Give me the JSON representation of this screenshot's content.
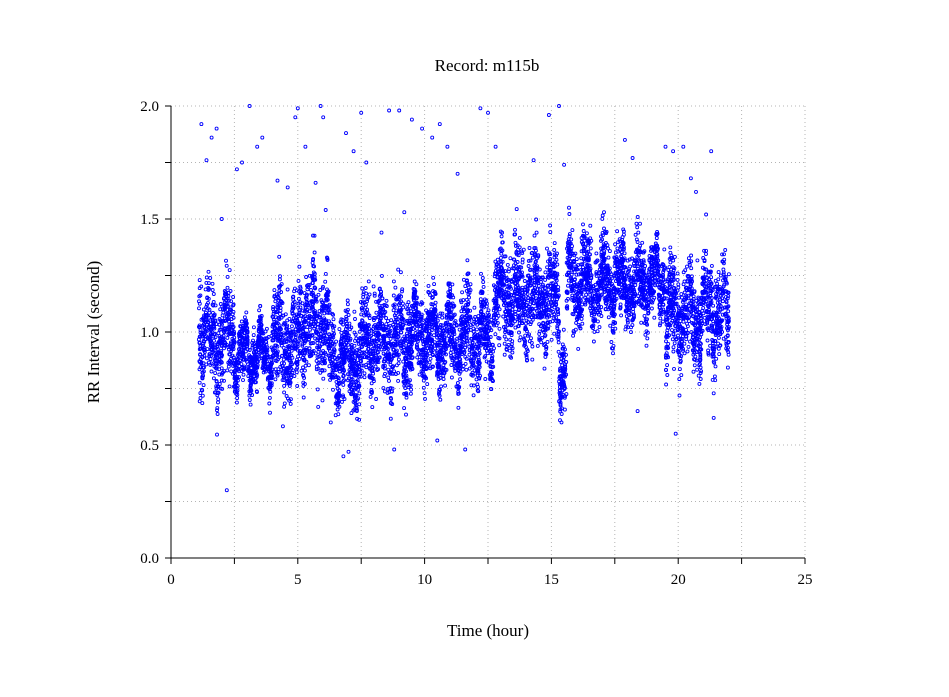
{
  "chart_data": {
    "type": "scatter",
    "title": "Record:  m115b",
    "xlabel": "Time (hour)",
    "ylabel": "RR Interval (second)",
    "xlim": [
      0,
      25
    ],
    "ylim": [
      0,
      2
    ],
    "x_ticks": [
      "0",
      "5",
      "10",
      "15",
      "20",
      "25"
    ],
    "y_ticks": [
      "0.0",
      "0.5",
      "1.0",
      "1.5",
      "2.0"
    ],
    "x_minor_step": 2.5,
    "y_minor_step": 0.25,
    "grid": true,
    "marker": "circle",
    "color": "#0000ff",
    "x_range_of_data": [
      1.1,
      22.0
    ],
    "series_profile": [
      {
        "x_start": 1.1,
        "x_end": 1.5,
        "y_center": 1.0,
        "y_spread": 0.2
      },
      {
        "x_start": 1.5,
        "x_end": 2.0,
        "y_center": 0.95,
        "y_spread": 0.18
      },
      {
        "x_start": 2.0,
        "x_end": 2.5,
        "y_center": 1.0,
        "y_spread": 0.2
      },
      {
        "x_start": 2.5,
        "x_end": 4.0,
        "y_center": 0.9,
        "y_spread": 0.1
      },
      {
        "x_start": 4.0,
        "x_end": 5.0,
        "y_center": 0.95,
        "y_spread": 0.18
      },
      {
        "x_start": 5.0,
        "x_end": 6.2,
        "y_center": 1.05,
        "y_spread": 0.2
      },
      {
        "x_start": 6.2,
        "x_end": 7.5,
        "y_center": 0.88,
        "y_spread": 0.15
      },
      {
        "x_start": 7.5,
        "x_end": 9.5,
        "y_center": 0.97,
        "y_spread": 0.18
      },
      {
        "x_start": 9.5,
        "x_end": 12.7,
        "y_center": 0.98,
        "y_spread": 0.15
      },
      {
        "x_start": 12.7,
        "x_end": 15.3,
        "y_center": 1.15,
        "y_spread": 0.18
      },
      {
        "x_start": 15.3,
        "x_end": 15.6,
        "y_center": 0.85,
        "y_spread": 0.15
      },
      {
        "x_start": 15.6,
        "x_end": 19.5,
        "y_center": 1.22,
        "y_spread": 0.15
      },
      {
        "x_start": 19.5,
        "x_end": 22.0,
        "y_center": 1.08,
        "y_spread": 0.18
      }
    ],
    "outliers": [
      {
        "x": 1.2,
        "y": 1.92
      },
      {
        "x": 1.4,
        "y": 1.76
      },
      {
        "x": 1.6,
        "y": 1.86
      },
      {
        "x": 1.8,
        "y": 1.9
      },
      {
        "x": 2.0,
        "y": 1.5
      },
      {
        "x": 2.2,
        "y": 0.3
      },
      {
        "x": 2.6,
        "y": 1.72
      },
      {
        "x": 2.8,
        "y": 1.75
      },
      {
        "x": 3.1,
        "y": 2.0
      },
      {
        "x": 3.4,
        "y": 1.82
      },
      {
        "x": 3.6,
        "y": 1.86
      },
      {
        "x": 4.2,
        "y": 1.67
      },
      {
        "x": 4.6,
        "y": 1.64
      },
      {
        "x": 4.9,
        "y": 1.95
      },
      {
        "x": 5.0,
        "y": 1.99
      },
      {
        "x": 5.3,
        "y": 1.82
      },
      {
        "x": 5.7,
        "y": 1.66
      },
      {
        "x": 5.9,
        "y": 2.0
      },
      {
        "x": 6.0,
        "y": 1.95
      },
      {
        "x": 6.1,
        "y": 1.54
      },
      {
        "x": 6.3,
        "y": 0.6
      },
      {
        "x": 6.8,
        "y": 0.45
      },
      {
        "x": 7.0,
        "y": 0.47
      },
      {
        "x": 6.9,
        "y": 1.88
      },
      {
        "x": 7.2,
        "y": 1.8
      },
      {
        "x": 7.5,
        "y": 1.97
      },
      {
        "x": 7.7,
        "y": 1.75
      },
      {
        "x": 8.3,
        "y": 1.44
      },
      {
        "x": 8.6,
        "y": 1.98
      },
      {
        "x": 8.8,
        "y": 0.48
      },
      {
        "x": 9.0,
        "y": 1.98
      },
      {
        "x": 9.2,
        "y": 1.53
      },
      {
        "x": 9.5,
        "y": 1.94
      },
      {
        "x": 9.9,
        "y": 1.9
      },
      {
        "x": 10.3,
        "y": 1.86
      },
      {
        "x": 10.5,
        "y": 0.52
      },
      {
        "x": 10.6,
        "y": 1.92
      },
      {
        "x": 10.9,
        "y": 1.82
      },
      {
        "x": 11.3,
        "y": 1.7
      },
      {
        "x": 11.6,
        "y": 0.48
      },
      {
        "x": 12.2,
        "y": 1.99
      },
      {
        "x": 12.5,
        "y": 1.97
      },
      {
        "x": 12.8,
        "y": 1.82
      },
      {
        "x": 14.3,
        "y": 1.76
      },
      {
        "x": 14.9,
        "y": 1.96
      },
      {
        "x": 15.3,
        "y": 2.0
      },
      {
        "x": 15.5,
        "y": 1.74
      },
      {
        "x": 15.4,
        "y": 0.6
      },
      {
        "x": 17.9,
        "y": 1.85
      },
      {
        "x": 18.2,
        "y": 1.77
      },
      {
        "x": 18.4,
        "y": 0.65
      },
      {
        "x": 19.5,
        "y": 1.82
      },
      {
        "x": 19.8,
        "y": 1.8
      },
      {
        "x": 19.9,
        "y": 0.55
      },
      {
        "x": 20.2,
        "y": 1.82
      },
      {
        "x": 20.5,
        "y": 1.68
      },
      {
        "x": 20.7,
        "y": 1.62
      },
      {
        "x": 21.1,
        "y": 1.52
      },
      {
        "x": 21.3,
        "y": 1.8
      },
      {
        "x": 21.4,
        "y": 0.62
      }
    ]
  }
}
